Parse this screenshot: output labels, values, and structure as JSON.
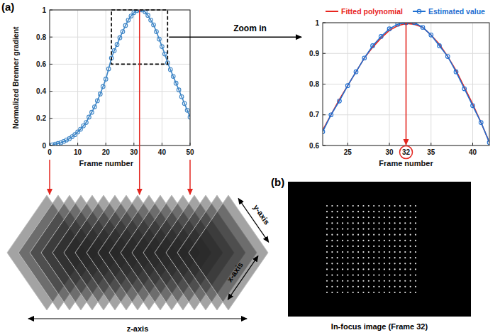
{
  "chart_data": [
    {
      "type": "line",
      "xlabel": "Frame number",
      "ylabel": "Normalized Brenner gradient",
      "x": [
        1,
        2,
        3,
        4,
        5,
        6,
        7,
        8,
        9,
        10,
        11,
        12,
        13,
        14,
        15,
        16,
        17,
        18,
        19,
        20,
        21,
        22,
        23,
        24,
        25,
        26,
        27,
        28,
        29,
        30,
        31,
        32,
        33,
        34,
        35,
        36,
        37,
        38,
        39,
        40,
        41,
        42,
        43,
        44,
        45,
        46,
        47,
        48,
        49,
        50
      ],
      "series": [
        {
          "color": "#3d85c6",
          "marker": "circle",
          "values": [
            0.005,
            0.01,
            0.015,
            0.02,
            0.03,
            0.04,
            0.05,
            0.065,
            0.08,
            0.1,
            0.12,
            0.145,
            0.17,
            0.21,
            0.245,
            0.285,
            0.33,
            0.38,
            0.435,
            0.49,
            0.565,
            0.645,
            0.7,
            0.745,
            0.795,
            0.84,
            0.885,
            0.925,
            0.955,
            0.98,
            0.995,
            1,
            1,
            0.985,
            0.96,
            0.925,
            0.89,
            0.84,
            0.785,
            0.73,
            0.675,
            0.61,
            0.56,
            0.51,
            0.46,
            0.41,
            0.36,
            0.31,
            0.26,
            0.21
          ]
        }
      ],
      "xlim": [
        0,
        50
      ],
      "xticks": [
        0,
        10,
        20,
        30,
        40,
        50
      ],
      "ylim": [
        0,
        1
      ],
      "yticks": [
        0,
        0.2,
        0.4,
        0.6,
        0.8,
        1
      ],
      "grid": true,
      "zoom_box": {
        "x": [
          22,
          42
        ],
        "y": [
          0.6,
          1
        ]
      },
      "frame_links": [
        0,
        32,
        50
      ]
    },
    {
      "type": "line",
      "xlabel": "Frame number",
      "x": [
        22,
        23,
        24,
        25,
        26,
        27,
        28,
        29,
        30,
        31,
        32,
        33,
        34,
        35,
        36,
        37,
        38,
        39,
        40,
        41,
        42
      ],
      "series": [
        {
          "name": "Fitted polynomial",
          "color": "#e8251f",
          "values": [
            0.65,
            0.7,
            0.75,
            0.795,
            0.84,
            0.885,
            0.92,
            0.95,
            0.975,
            0.99,
            0.997,
            0.995,
            0.985,
            0.96,
            0.93,
            0.89,
            0.845,
            0.79,
            0.735,
            0.675,
            0.61
          ]
        },
        {
          "name": "Estimated value",
          "color": "#1f6fd1",
          "marker": "circle",
          "values": [
            0.645,
            0.7,
            0.745,
            0.795,
            0.84,
            0.885,
            0.925,
            0.955,
            0.98,
            0.995,
            1,
            1,
            0.985,
            0.96,
            0.925,
            0.89,
            0.84,
            0.785,
            0.73,
            0.675,
            0.61
          ]
        }
      ],
      "xlim": [
        22,
        42
      ],
      "xticks": [
        25,
        30,
        35,
        40
      ],
      "ylim": [
        0.6,
        1
      ],
      "yticks": [
        0.6,
        0.7,
        0.8,
        0.9,
        1
      ],
      "grid": true,
      "legend": "top",
      "peak": {
        "x": 32,
        "label": "32"
      }
    }
  ],
  "figure": {
    "panel_labels": [
      "(a)",
      "(b)"
    ],
    "zoom_label": "Zoom in",
    "axis_names": {
      "x": "x-axis",
      "y": "y-axis",
      "z": "z-axis"
    },
    "image_caption": "In-focus image (Frame 32)"
  }
}
